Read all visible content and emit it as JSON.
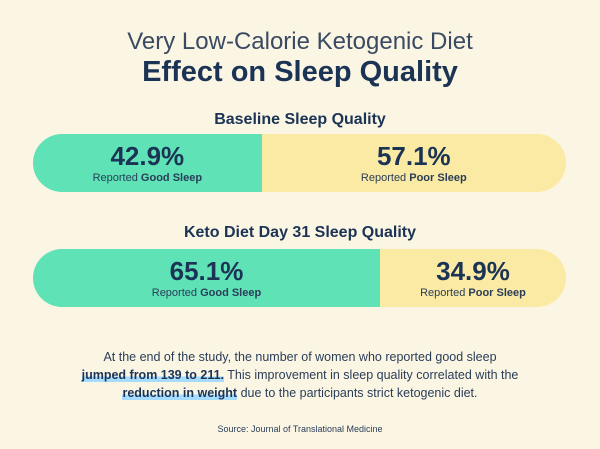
{
  "title_line1": "Very Low-Calorie Ketogenic Diet",
  "title_line2": "Effect on Sleep Quality",
  "colors": {
    "good": "#5ee2b6",
    "poor": "#faeaa4",
    "background": "#fbf6e4",
    "text": "#1b3354"
  },
  "chart_data": [
    {
      "type": "bar",
      "orientation": "horizontal-stacked",
      "title": "Baseline Sleep Quality",
      "categories": [
        "Good Sleep",
        "Poor Sleep"
      ],
      "values": [
        42.9,
        57.1
      ],
      "value_labels": [
        "42.9%",
        "57.1%"
      ],
      "label_prefix": "Reported",
      "unit": "%"
    },
    {
      "type": "bar",
      "orientation": "horizontal-stacked",
      "title": "Keto Diet Day 31 Sleep Quality",
      "categories": [
        "Good Sleep",
        "Poor Sleep"
      ],
      "values": [
        65.1,
        34.9
      ],
      "value_labels": [
        "65.1%",
        "34.9%"
      ],
      "label_prefix": "Reported",
      "unit": "%"
    }
  ],
  "note": {
    "part1": "At the end of the study, the number of women who reported good sleep",
    "highlight1": "jumped from 139 to 211.",
    "part2": "This improvement in sleep quality correlated with the",
    "highlight2": "reduction in weight",
    "part3": "due to the participants strict ketogenic diet."
  },
  "source": "Source: Journal of Translational Medicine"
}
